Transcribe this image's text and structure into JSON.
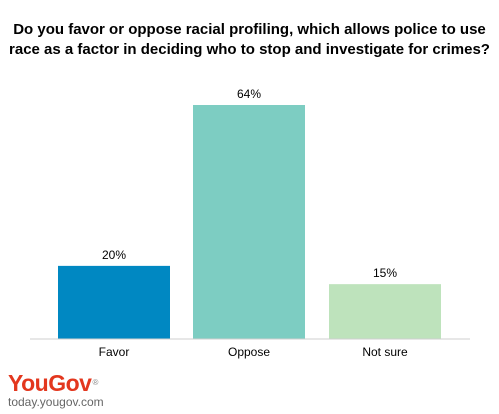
{
  "chart_data": {
    "type": "bar",
    "title": "Do you favor or oppose racial profiling, which allows police to use race as a factor in deciding who to stop and investigate for crimes?",
    "categories": [
      "Favor",
      "Oppose",
      "Not sure"
    ],
    "values": [
      20,
      64,
      15
    ],
    "data_labels": [
      "20%",
      "64%",
      "15%"
    ],
    "colors": [
      "#0088c2",
      "#7dcdc2",
      "#bee3bc"
    ],
    "ylim": [
      0,
      64
    ],
    "grid": false,
    "legend": "none"
  },
  "brand": {
    "logo_you": "You",
    "logo_gov": "Gov",
    "logo_mark": "®",
    "url": "today.yougov.com"
  }
}
